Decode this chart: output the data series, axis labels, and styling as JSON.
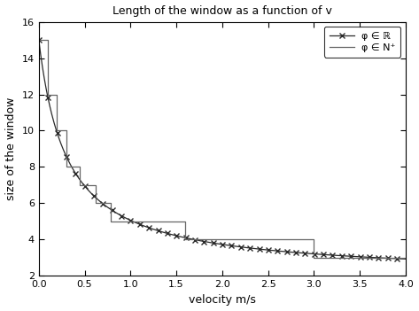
{
  "title": "Length of the window as a function of v",
  "xlabel": "velocity m/s",
  "ylabel": "size of the window",
  "xlim": [
    0,
    4
  ],
  "ylim": [
    2,
    16
  ],
  "yticks": [
    2,
    4,
    6,
    8,
    10,
    12,
    14,
    16
  ],
  "xticks": [
    0,
    0.5,
    1.0,
    1.5,
    2.0,
    2.5,
    3.0,
    3.5,
    4.0
  ],
  "continuous_color": "#2a2a2a",
  "step_color": "#666666",
  "legend_labels": [
    "φ ∈ ℝ",
    "φ ∈ N⁺"
  ],
  "curve_a": 0.25,
  "curve_b": 0.06667,
  "curve_c": 2.0,
  "step_v": [
    0.0,
    0.1,
    0.1,
    0.2,
    0.2,
    0.3,
    0.3,
    0.45,
    0.45,
    0.62,
    0.62,
    0.78,
    0.78,
    1.6,
    1.6,
    3.0,
    3.0,
    4.0
  ],
  "step_y": [
    15,
    15,
    12,
    12,
    10,
    10,
    8,
    8,
    7,
    7,
    6,
    6,
    5,
    5,
    4,
    4,
    3,
    3
  ],
  "marker_every": 20,
  "marker_size": 5,
  "figsize": [
    4.73,
    3.51
  ],
  "dpi": 100
}
